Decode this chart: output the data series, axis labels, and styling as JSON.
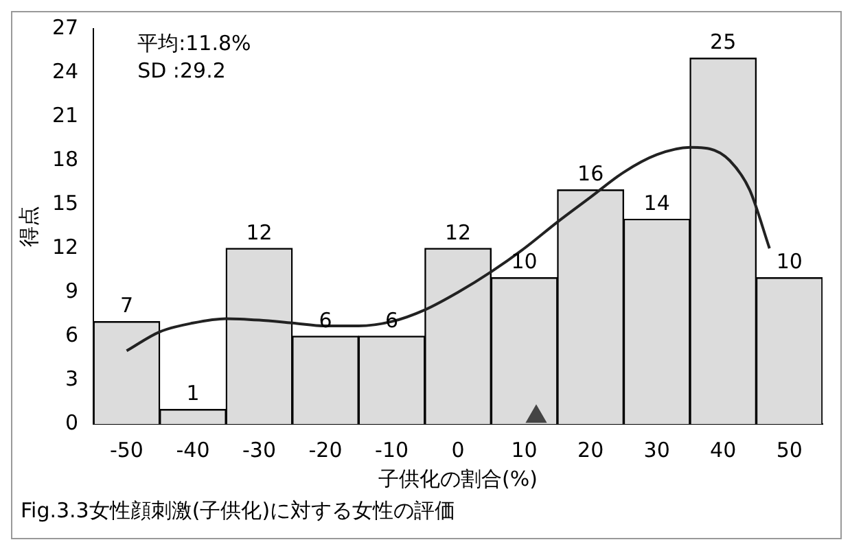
{
  "chart_data": {
    "type": "bar",
    "ylabel": "得点",
    "xlabel": "子供化の割合(%)",
    "x": [
      -50,
      -40,
      -30,
      -20,
      -10,
      0,
      10,
      20,
      30,
      40,
      50
    ],
    "xlim": [
      -55,
      55
    ],
    "xticks": [
      -50,
      -40,
      -30,
      -20,
      -10,
      0,
      10,
      20,
      30,
      40,
      50
    ],
    "ylim": [
      0,
      27
    ],
    "yticks": [
      0,
      3,
      6,
      9,
      12,
      15,
      18,
      21,
      24,
      27
    ],
    "series": [
      {
        "color": "#dcdcdc",
        "values": [
          7,
          1,
          12,
          6,
          6,
          12,
          10,
          16,
          14,
          25,
          10
        ],
        "value_labels": [
          "7",
          "1",
          "12",
          "6",
          "6",
          "12",
          "10",
          "16",
          "14",
          "25",
          "10"
        ]
      },
      {
        "type": "line",
        "color": "#222222",
        "x": [
          -50,
          -45,
          -40,
          -35,
          -30,
          -25,
          -20,
          -15,
          -10,
          -5,
          0,
          5,
          10,
          15,
          20,
          25,
          30,
          35,
          38,
          41,
          44,
          47
        ],
        "values": [
          5,
          6.3,
          6.9,
          7.2,
          7.1,
          6.9,
          6.7,
          6.7,
          7,
          7.8,
          9,
          10.4,
          12,
          13.8,
          15.5,
          17.2,
          18.4,
          18.9,
          18.8,
          18,
          16,
          12
        ]
      },
      {
        "type": "scatter",
        "color": "#444444",
        "marker": "triangle",
        "x": [
          11.8
        ],
        "values": [
          0.5
        ]
      }
    ],
    "grid": false,
    "legend": false,
    "marker": "none",
    "annotations": [
      "平均:11.8%",
      "SD :29.2",
      "Fig.3.3女性顔刺激(子供化)に対する女性の評価"
    ]
  }
}
